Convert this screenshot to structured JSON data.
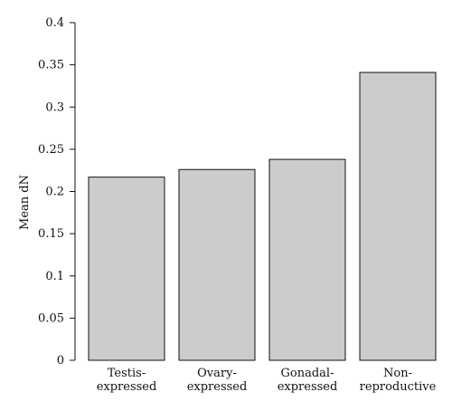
{
  "chart_data": {
    "type": "bar",
    "categories": [
      [
        "Testis-",
        "expressed"
      ],
      [
        "Ovary-",
        "expressed"
      ],
      [
        "Gonadal-",
        "expressed"
      ],
      [
        "Non-",
        "reproductive"
      ]
    ],
    "values": [
      0.217,
      0.226,
      0.238,
      0.341
    ],
    "yticks": [
      "0",
      "0.05",
      "0.1",
      "0.15",
      "0.2",
      "0.25",
      "0.3",
      "0.35",
      "0.4"
    ],
    "ylim": [
      0,
      0.4
    ],
    "ylabel": "Mean dN",
    "xlabel": "",
    "title": "",
    "grid": false,
    "legend": "none",
    "bar_color": "#cccccc",
    "bar_edge_color": "#111111"
  }
}
